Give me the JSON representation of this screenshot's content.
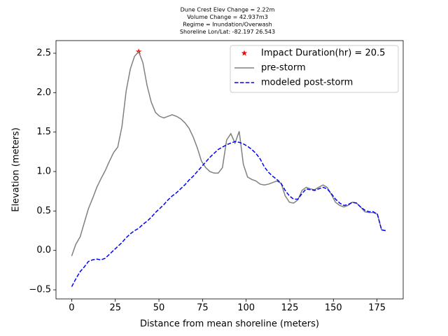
{
  "chart_data": {
    "type": "line",
    "title_lines": [
      "Dune Crest Elev Change = 2.22m",
      "Volume Change = 42.937m3",
      "Regime = Inundation/Overwash",
      "Shoreline Lon/Lat: -82.197 26.543"
    ],
    "x_label": "Distance from mean shoreline (meters)",
    "y_label": "Elevation (meters)",
    "x": [
      0,
      2.4,
      4.8,
      7.2,
      9.6,
      12,
      14.4,
      16.8,
      19.2,
      21.6,
      24,
      26.4,
      28.8,
      31.2,
      33.6,
      36,
      38.4,
      40.8,
      43.2,
      45.6,
      48,
      50.4,
      52.8,
      55.2,
      57.6,
      60,
      62.4,
      64.8,
      67.2,
      69.6,
      72,
      74.4,
      76.8,
      79.2,
      81.6,
      84,
      86.4,
      88.8,
      91.2,
      93.6,
      96,
      98.4,
      100.8,
      103.2,
      105.6,
      108,
      110.4,
      112.8,
      115.2,
      117.6,
      120,
      122.4,
      124.8,
      127.2,
      129.6,
      132,
      134.4,
      136.8,
      139.2,
      141.6,
      144,
      146.4,
      148.8,
      151.2,
      153.6,
      156,
      158.4,
      160.8,
      163.2,
      165.6,
      168,
      170.4,
      172.8,
      175.2,
      177.6,
      180
    ],
    "series": [
      {
        "name": "Impact Duration(hr) = 20.5",
        "color": "#ff0000",
        "marker": "star",
        "x": [
          38.4
        ],
        "values": [
          2.52
        ]
      },
      {
        "name": "pre-storm",
        "color": "#808080",
        "linestyle": "solid",
        "values": [
          -0.07,
          0.08,
          0.17,
          0.35,
          0.53,
          0.66,
          0.8,
          0.91,
          1.01,
          1.13,
          1.24,
          1.31,
          1.57,
          2.02,
          2.3,
          2.46,
          2.52,
          2.38,
          2.09,
          1.88,
          1.75,
          1.7,
          1.68,
          1.7,
          1.72,
          1.7,
          1.67,
          1.62,
          1.55,
          1.44,
          1.3,
          1.13,
          1.05,
          1.0,
          0.98,
          0.98,
          1.05,
          1.4,
          1.48,
          1.36,
          1.51,
          1.09,
          0.93,
          0.9,
          0.88,
          0.84,
          0.83,
          0.84,
          0.86,
          0.88,
          0.85,
          0.69,
          0.61,
          0.6,
          0.64,
          0.76,
          0.8,
          0.78,
          0.77,
          0.8,
          0.83,
          0.8,
          0.71,
          0.61,
          0.57,
          0.55,
          0.57,
          0.61,
          0.6,
          0.55,
          0.49,
          0.48,
          0.48,
          0.46,
          0.26,
          0.25
        ]
      },
      {
        "name": "modeled post-storm",
        "color": "#0000ff",
        "linestyle": "dashed",
        "values": [
          -0.46,
          -0.36,
          -0.27,
          -0.21,
          -0.14,
          -0.12,
          -0.11,
          -0.12,
          -0.1,
          -0.05,
          0.0,
          0.05,
          0.1,
          0.16,
          0.21,
          0.25,
          0.28,
          0.33,
          0.37,
          0.42,
          0.48,
          0.53,
          0.58,
          0.64,
          0.69,
          0.73,
          0.78,
          0.83,
          0.89,
          0.94,
          1.0,
          1.06,
          1.12,
          1.18,
          1.23,
          1.28,
          1.31,
          1.34,
          1.36,
          1.38,
          1.37,
          1.35,
          1.32,
          1.28,
          1.23,
          1.16,
          1.06,
          0.99,
          0.94,
          0.9,
          0.85,
          0.76,
          0.69,
          0.65,
          0.65,
          0.72,
          0.78,
          0.77,
          0.76,
          0.78,
          0.8,
          0.78,
          0.72,
          0.65,
          0.6,
          0.57,
          0.58,
          0.61,
          0.6,
          0.55,
          0.51,
          0.49,
          0.49,
          0.46,
          0.26,
          0.25
        ]
      }
    ],
    "xlim": [
      -9,
      190
    ],
    "ylim": [
      -0.615,
      2.66
    ],
    "xticks": [
      0,
      25,
      50,
      75,
      100,
      125,
      150,
      175
    ],
    "yticks": [
      {
        "value": -0.5,
        "label": "−0.5"
      },
      {
        "value": 0,
        "label": "0.0"
      },
      0.5,
      {
        "value": 1,
        "label": "1.0"
      },
      1.5,
      {
        "value": 2,
        "label": "2.0"
      },
      2.5
    ],
    "legend": "upper right",
    "grid": false
  }
}
